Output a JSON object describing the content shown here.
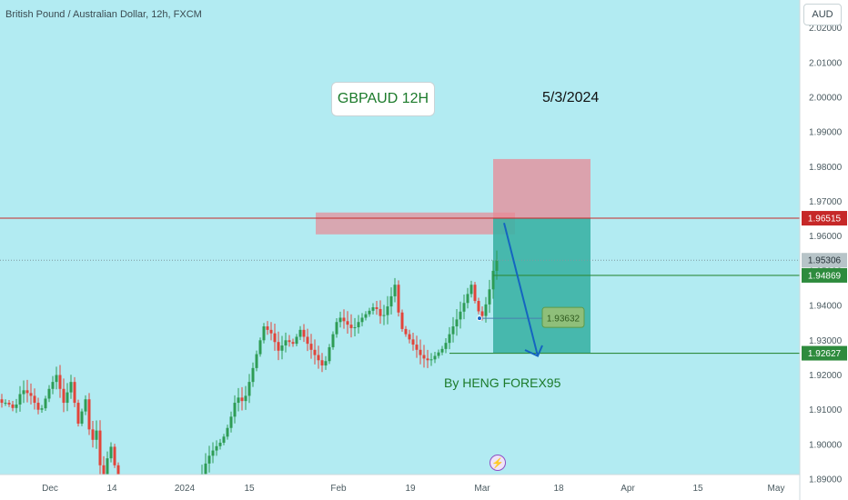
{
  "header": {
    "symbol_line": "British Pound / Australian Dollar, 12h, FXCM",
    "currency": "AUD"
  },
  "annotations": {
    "title_box": "GBPAUD 12H",
    "date": "5/3/2024",
    "author": "By HENG FOREX95",
    "mid_price_label": "1.93632"
  },
  "colors": {
    "background": "#b2ebf2",
    "candle_up": "#2e9c55",
    "candle_down": "#e2443a",
    "target_zone": "#3bb3a5",
    "stop_zone": "#e88a96",
    "resistance_line": "#c62828",
    "target_line": "#2e8b3d",
    "arrow": "#1565c0",
    "price_badge_gray": "#b7c4c8"
  },
  "chart_data": {
    "type": "candlestick",
    "x_axis_labels": [
      "Dec",
      "14",
      "2024",
      "15",
      "Feb",
      "19",
      "Mar",
      "18",
      "Apr",
      "15",
      "May"
    ],
    "y_axis_labels": [
      "2.02000",
      "2.01000",
      "2.00000",
      "1.99000",
      "1.98000",
      "1.97000",
      "1.96000",
      "1.95000",
      "1.94000",
      "1.93000",
      "1.92000",
      "1.91000",
      "1.90000",
      "1.89000"
    ],
    "ylim": [
      1.884,
      2.028
    ],
    "levels": [
      {
        "name": "resistance",
        "value": 1.96515,
        "label": "1.96515"
      },
      {
        "name": "entry",
        "value": 1.94869,
        "label": "1.94869"
      },
      {
        "name": "target",
        "value": 1.92627,
        "label": "1.92627"
      }
    ],
    "last_price": {
      "value": 1.95306,
      "label": "1.95306"
    },
    "zones": [
      {
        "name": "supply-zone",
        "from": 1.9605,
        "to": 1.9668
      },
      {
        "name": "stop-zone",
        "from": 1.9651,
        "to": 1.9822
      },
      {
        "name": "target-zone",
        "from": 1.9262,
        "to": 1.9651
      }
    ],
    "close_path_start": 1.913,
    "close_path": [
      [
        8,
        1.912
      ],
      [
        16,
        1.91
      ],
      [
        24,
        1.916
      ],
      [
        34,
        1.914
      ],
      [
        44,
        1.909
      ],
      [
        54,
        1.916
      ],
      [
        62,
        1.92
      ],
      [
        70,
        1.912
      ],
      [
        78,
        1.918
      ],
      [
        86,
        1.906
      ],
      [
        94,
        1.913
      ],
      [
        100,
        1.9
      ],
      [
        106,
        1.904
      ],
      [
        112,
        1.889
      ],
      [
        118,
        1.896
      ],
      [
        124,
        1.901
      ],
      [
        128,
        1.887
      ],
      [
        136,
        1.884
      ],
      [
        146,
        1.884
      ],
      [
        166,
        1.884
      ],
      [
        184,
        1.884
      ],
      [
        204,
        1.884
      ],
      [
        220,
        1.89
      ],
      [
        228,
        1.896
      ],
      [
        236,
        1.899
      ],
      [
        244,
        1.901
      ],
      [
        252,
        1.906
      ],
      [
        260,
        1.914
      ],
      [
        268,
        1.912
      ],
      [
        276,
        1.92
      ],
      [
        284,
        1.928
      ],
      [
        290,
        1.934
      ],
      [
        298,
        1.932
      ],
      [
        306,
        1.927
      ],
      [
        314,
        1.93
      ],
      [
        322,
        1.929
      ],
      [
        330,
        1.933
      ],
      [
        340,
        1.928
      ],
      [
        348,
        1.925
      ],
      [
        356,
        1.922
      ],
      [
        364,
        1.93
      ],
      [
        372,
        1.937
      ],
      [
        380,
        1.935
      ],
      [
        388,
        1.933
      ],
      [
        396,
        1.936
      ],
      [
        404,
        1.938
      ],
      [
        412,
        1.94
      ],
      [
        420,
        1.936
      ],
      [
        428,
        1.941
      ],
      [
        434,
        1.946
      ],
      [
        440,
        1.934
      ],
      [
        448,
        1.931
      ],
      [
        456,
        1.928
      ],
      [
        464,
        1.925
      ],
      [
        472,
        1.924
      ],
      [
        480,
        1.926
      ],
      [
        488,
        1.928
      ],
      [
        496,
        1.933
      ],
      [
        504,
        1.937
      ],
      [
        512,
        1.942
      ],
      [
        518,
        1.946
      ],
      [
        524,
        1.939
      ],
      [
        530,
        1.937
      ],
      [
        536,
        1.942
      ],
      [
        542,
        1.95
      ],
      [
        546,
        1.953
      ]
    ]
  }
}
